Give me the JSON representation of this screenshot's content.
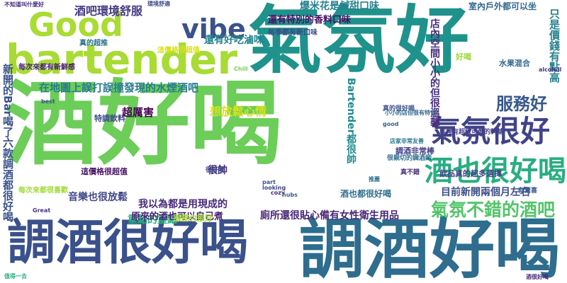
{
  "words": [
    {
      "text": "酒好喝",
      "color": "#6ccd59",
      "rot": 0
    },
    {
      "text": "氣氛好",
      "color": "#1f928c",
      "rot": 0
    },
    {
      "text": "調酒很好喝",
      "color": "#3b518b",
      "rot": 0
    },
    {
      "text": "調酒好喝",
      "color": "#2e6d8e",
      "rot": 0
    },
    {
      "text": "bartender",
      "color": "#a8db34",
      "rot": 0
    },
    {
      "text": "Good",
      "color": "#aadc32",
      "rot": 0
    },
    {
      "text": "vibe",
      "color": "#3b528b",
      "rot": 0
    },
    {
      "text": "氣氛很好",
      "color": "#404388",
      "rot": 0
    },
    {
      "text": "酒也很好喝",
      "color": "#28ae80",
      "rot": 0
    },
    {
      "text": "氣氛不錯的酒吧",
      "color": "#52c569",
      "rot": 0
    },
    {
      "text": "服務好",
      "color": "#38588c",
      "rot": 0
    },
    {
      "text": "酒吧環境舒服",
      "color": "#453882",
      "rot": 0
    },
    {
      "text": "在地圖上誤打誤撞發現的水煙酒吧",
      "color": "#287c8e",
      "rot": 0
    },
    {
      "text": "酒也都很好喝",
      "color": "#2d708e",
      "rot": 0
    },
    {
      "text": "每季都有新口味",
      "color": "#3e4a89",
      "rot": 0
    },
    {
      "text": "還有特別的香料口味",
      "color": "#471063",
      "rot": 0
    },
    {
      "text": "爆米花是鹹甜口味",
      "color": "#26818e",
      "rot": 0
    },
    {
      "text": "室內戶外都可以坐",
      "color": "#31688e",
      "rot": 0
    },
    {
      "text": "還有好吃滷味",
      "color": "#25848e",
      "rot": 0
    },
    {
      "text": "Bartender都很帥",
      "color": "#228c8d",
      "rot": 90
    },
    {
      "text": "想放鬆心情",
      "color": "#d8e219",
      "rot": 0
    },
    {
      "text": "超厲害",
      "color": "#440154",
      "rot": 0
    },
    {
      "text": "音樂也很放鬆",
      "color": "#3f4889",
      "rot": 0
    },
    {
      "text": "重點的重點",
      "color": "#2ab07f",
      "rot": 0
    },
    {
      "text": "這價格很超值",
      "color": "#471164",
      "rot": 0
    },
    {
      "text": "很帥",
      "color": "#472c7a",
      "rot": 0
    },
    {
      "text": "廁所還很貼心備有女性衛生用品",
      "color": "#482677",
      "rot": 0
    },
    {
      "text": "目前新開兩個月左右",
      "color": "#3d4e8a",
      "rot": 0
    },
    {
      "text": "飲品真的超多選擇",
      "color": "#414287",
      "rot": 0
    },
    {
      "text": "調酒非常棒",
      "color": "#433e85",
      "rot": 0
    },
    {
      "text": "特調飲料",
      "color": "#3e4989",
      "rot": 0
    },
    {
      "text": "每次來都有新鮮感",
      "color": "#482273",
      "rot": 0
    },
    {
      "text": "真的超推",
      "color": "#2b748e",
      "rot": 0
    },
    {
      "text": "新開的Bar喝了六款調酒都很好喝",
      "color": "#3b528b",
      "rot": 90
    },
    {
      "text": "我以為都是用現成的",
      "color": "#472a7a",
      "rot": 0
    },
    {
      "text": "原來的酒也可以自己煮",
      "color": "#482475",
      "rot": 0
    },
    {
      "text": "真的很好喝",
      "color": "#3a538b",
      "rot": 0
    },
    {
      "text": "很親切的調酒師",
      "color": "#2e6e8e",
      "rot": 0
    },
    {
      "text": "這價格很超值",
      "color": "#d5e21a",
      "rot": 0
    },
    {
      "text": "服務也很好",
      "color": "#a2da37",
      "rot": 0
    },
    {
      "text": "每次來都很喜歡",
      "color": "#a0da39",
      "rot": 0
    },
    {
      "text": "好喝",
      "color": "#9bd93c",
      "rot": 0
    },
    {
      "text": "水果混合",
      "color": "#31678e",
      "rot": 0
    },
    {
      "text": "只是價錢有點高",
      "color": "#26828e",
      "rot": 90
    },
    {
      "text": "很好喝",
      "color": "#3f4788",
      "rot": 0
    },
    {
      "text": "有驚喜",
      "color": "#39568c",
      "rot": 0
    },
    {
      "text": "真不錯",
      "color": "#472f7d",
      "rot": 0
    },
    {
      "text": "good",
      "color": "#33638d",
      "rot": 0
    },
    {
      "text": "Chill",
      "color": "#77d153",
      "rot": 0
    },
    {
      "text": "alcohol",
      "color": "#46307e",
      "rot": 0
    },
    {
      "text": "best",
      "color": "#3b528b",
      "rot": 0
    },
    {
      "text": "looking",
      "color": "#3f4889",
      "rot": 0
    },
    {
      "text": "part",
      "color": "#3b528b",
      "rot": 0
    },
    {
      "text": "cozy",
      "color": "#482576",
      "rot": 0
    },
    {
      "text": "Great",
      "color": "#46337f",
      "rot": 0
    },
    {
      "text": "hubs",
      "color": "#34618d",
      "rot": 0
    },
    {
      "text": "不知道叫什麼好",
      "color": "#472d7b",
      "rot": 0
    },
    {
      "text": "環境舒適",
      "color": "#3e4a89",
      "rot": 0
    },
    {
      "text": "店家非常友善",
      "color": "#2a788e",
      "rot": 0
    },
    {
      "text": "店內空間小小的但很溫馨",
      "color": "#472e7c",
      "rot": 90
    },
    {
      "text": "小小的店但很有特色",
      "color": "#31688e",
      "rot": 0
    },
    {
      "text": "店裡有超級可愛的料基",
      "color": "#433e85",
      "rot": 0
    },
    {
      "text": "推薦",
      "color": "#2d708e",
      "rot": 0
    },
    {
      "text": "酒很好喝",
      "color": "#482878",
      "rot": 0
    },
    {
      "text": "值得一去",
      "color": "#27ad81",
      "rot": 0
    }
  ]
}
